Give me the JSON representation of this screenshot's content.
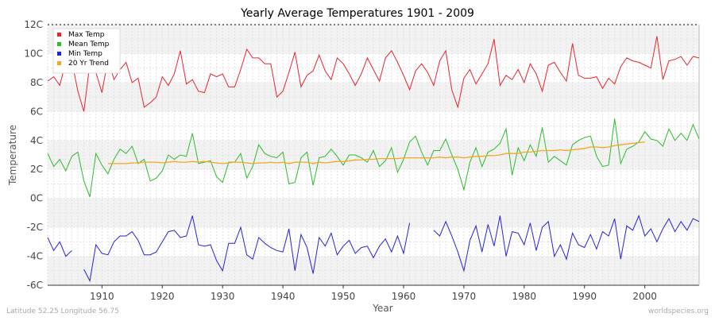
{
  "chart_data": {
    "type": "line",
    "title": "Yearly Average Temperatures 1901 - 2009",
    "xlabel": "Year",
    "ylabel": "Temperature",
    "xlim": [
      1901,
      2009
    ],
    "ylim": [
      -6,
      12
    ],
    "x_ticks": [
      1910,
      1920,
      1930,
      1940,
      1950,
      1960,
      1970,
      1980,
      1990,
      2000
    ],
    "y_ticks": [
      -6,
      -4,
      -2,
      0,
      2,
      4,
      6,
      8,
      10,
      12
    ],
    "y_tick_labels": [
      "-6C",
      "-4C",
      "-2C",
      "0C",
      "2C",
      "4C",
      "6C",
      "8C",
      "10C",
      "12C"
    ],
    "grid": true,
    "legend_position": "top-left",
    "x_start": 1901,
    "series": [
      {
        "name": "Max Temp",
        "color": "#e8242c",
        "values": [
          8.1,
          8.4,
          7.8,
          9.2,
          9.5,
          7.4,
          6.0,
          9.3,
          8.7,
          7.3,
          null,
          null,
          null,
          null,
          null,
          null,
          null,
          null,
          null,
          null,
          null,
          null,
          null,
          null,
          null,
          null,
          null,
          null,
          null,
          null,
          null,
          null,
          null,
          null,
          null,
          null,
          null,
          null,
          null,
          null,
          null,
          null,
          null,
          null,
          null,
          null,
          null,
          null,
          null,
          null,
          null,
          null,
          null,
          null,
          null,
          null,
          null,
          null,
          null,
          null,
          null,
          null,
          null,
          null,
          null,
          null,
          null,
          null,
          null,
          null,
          null,
          null,
          null,
          null,
          null,
          null,
          null,
          null,
          null,
          null,
          null,
          null,
          null,
          null,
          null,
          null,
          null,
          null,
          null,
          null,
          null,
          null,
          null,
          null,
          null,
          null,
          null,
          null,
          null,
          null,
          null,
          null,
          null,
          null,
          null,
          null,
          null,
          null,
          null
        ]
      }
    ],
    "annotations_left": "Latitude 52.25 Longitude 56.75",
    "annotations_right": "worldspecies.org"
  }
}
